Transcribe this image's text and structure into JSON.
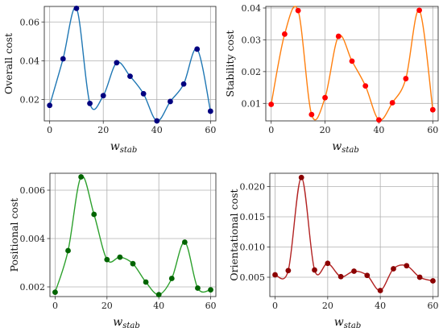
{
  "chart_data": [
    {
      "type": "line",
      "ylabel": "Overall cost",
      "xlabel": "w",
      "xlabel_sub": "stab",
      "xlim": [
        -2,
        62
      ],
      "ylim": [
        0.009,
        0.068
      ],
      "xticks": [
        0,
        20,
        40,
        60
      ],
      "yticks": [
        0.02,
        0.04,
        0.06
      ],
      "ytick_labels": [
        "0.02",
        "0.04",
        "0.06"
      ],
      "grid": true,
      "line_color": "#1f77b4",
      "marker_color": "#000080",
      "series": [
        {
          "x": [
            0,
            5,
            10,
            15,
            20,
            25,
            30,
            35,
            40,
            45,
            50,
            55,
            60
          ],
          "y": [
            0.017,
            0.041,
            0.067,
            0.018,
            0.022,
            0.039,
            0.032,
            0.023,
            0.009,
            0.019,
            0.028,
            0.046,
            0.014
          ]
        }
      ]
    },
    {
      "type": "line",
      "ylabel": "Stability cost",
      "xlabel": "w",
      "xlabel_sub": "stab",
      "xlim": [
        -2,
        62
      ],
      "ylim": [
        0.0045,
        0.0405
      ],
      "xticks": [
        0,
        20,
        40,
        60
      ],
      "yticks": [
        0.01,
        0.02,
        0.03,
        0.04
      ],
      "ytick_labels": [
        "0.01",
        "0.02",
        "0.03",
        "0.04"
      ],
      "grid": true,
      "line_color": "#ff7f0e",
      "marker_color": "#ff0000",
      "series": [
        {
          "x": [
            0,
            5,
            10,
            15,
            20,
            25,
            30,
            35,
            40,
            45,
            50,
            55,
            60
          ],
          "y": [
            0.0097,
            0.0318,
            0.0392,
            0.0065,
            0.0118,
            0.0311,
            0.0233,
            0.0155,
            0.0048,
            0.0102,
            0.0178,
            0.0393,
            0.008
          ]
        }
      ]
    },
    {
      "type": "line",
      "ylabel": "Positional cost",
      "xlabel": "w",
      "xlabel_sub": "stab",
      "xlim": [
        -2,
        62
      ],
      "ylim": [
        0.0016,
        0.0067
      ],
      "xticks": [
        0,
        20,
        40,
        60
      ],
      "yticks": [
        0.002,
        0.004,
        0.006
      ],
      "ytick_labels": [
        "0.002",
        "0.004",
        "0.006"
      ],
      "grid": true,
      "line_color": "#2ca02c",
      "marker_color": "#006400",
      "series": [
        {
          "x": [
            0,
            5,
            10,
            15,
            20,
            25,
            30,
            35,
            40,
            45,
            50,
            55,
            60
          ],
          "y": [
            0.00178,
            0.0035,
            0.00655,
            0.005,
            0.00313,
            0.00323,
            0.00296,
            0.0022,
            0.00168,
            0.00235,
            0.00385,
            0.00195,
            0.00188
          ]
        }
      ]
    },
    {
      "type": "line",
      "ylabel": "Orientational cost",
      "xlabel": "w",
      "xlabel_sub": "stab",
      "xlim": [
        -2,
        62
      ],
      "ylim": [
        0.0018,
        0.0222
      ],
      "xticks": [
        0,
        20,
        40,
        60
      ],
      "yticks": [
        0.005,
        0.01,
        0.015,
        0.02
      ],
      "ytick_labels": [
        "0.005",
        "0.010",
        "0.015",
        "0.020"
      ],
      "grid": true,
      "line_color": "#b22222",
      "marker_color": "#8b0000",
      "series": [
        {
          "x": [
            0,
            5,
            10,
            15,
            20,
            25,
            30,
            35,
            40,
            45,
            50,
            55,
            60
          ],
          "y": [
            0.0054,
            0.0061,
            0.0215,
            0.0062,
            0.0073,
            0.0051,
            0.006,
            0.0053,
            0.0028,
            0.0064,
            0.0069,
            0.005,
            0.0044
          ]
        }
      ]
    }
  ]
}
